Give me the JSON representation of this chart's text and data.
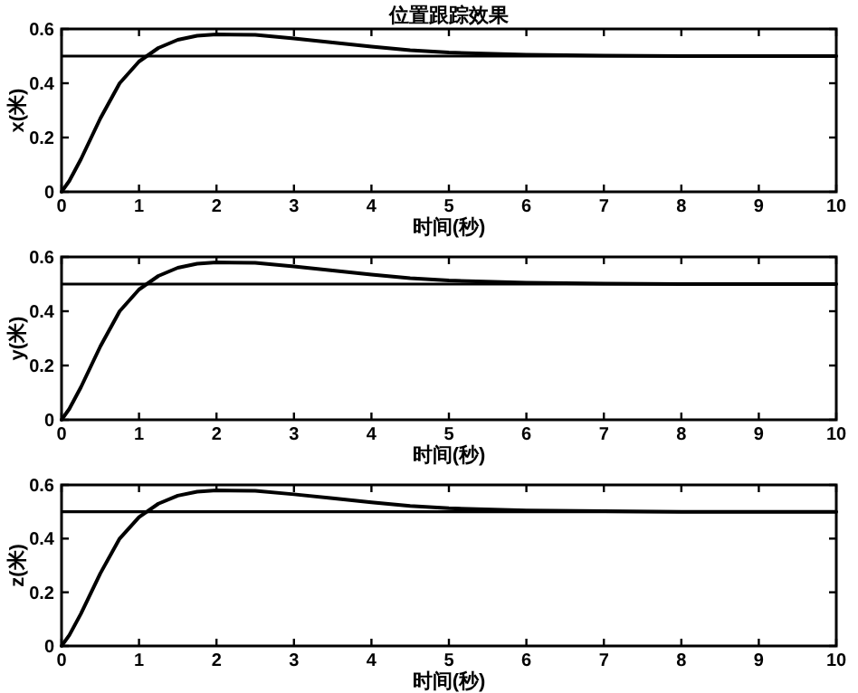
{
  "chart_data": [
    {
      "type": "line",
      "title": "位置跟踪效果",
      "xlabel": "时间(秒)",
      "ylabel": "x(米)",
      "xlim": [
        0,
        10
      ],
      "ylim": [
        0,
        0.6
      ],
      "xticks": [
        0,
        1,
        2,
        3,
        4,
        5,
        6,
        7,
        8,
        9,
        10
      ],
      "yticks": [
        0,
        0.2,
        0.4,
        0.6
      ],
      "x": [
        0,
        0.1,
        0.25,
        0.5,
        0.75,
        1,
        1.25,
        1.5,
        1.75,
        2,
        2.5,
        3,
        3.5,
        4,
        4.5,
        5,
        6,
        7,
        8,
        10
      ],
      "series": [
        {
          "color": "#000000",
          "values": [
            0,
            0.04,
            0.12,
            0.27,
            0.4,
            0.48,
            0.53,
            0.56,
            0.575,
            0.58,
            0.578,
            0.565,
            0.55,
            0.535,
            0.522,
            0.513,
            0.505,
            0.502,
            0.5,
            0.5
          ]
        }
      ],
      "ref_lines": [
        {
          "axis": "y",
          "value": 0.5,
          "label": null,
          "color": "#000000"
        }
      ]
    },
    {
      "type": "line",
      "xlabel": "时间(秒)",
      "ylabel": "y(米)",
      "xlim": [
        0,
        10
      ],
      "ylim": [
        0,
        0.6
      ],
      "xticks": [
        0,
        1,
        2,
        3,
        4,
        5,
        6,
        7,
        8,
        9,
        10
      ],
      "yticks": [
        0,
        0.2,
        0.4,
        0.6
      ],
      "x": [
        0,
        0.1,
        0.25,
        0.5,
        0.75,
        1,
        1.25,
        1.5,
        1.75,
        2,
        2.5,
        3,
        3.5,
        4,
        4.5,
        5,
        6,
        7,
        8,
        10
      ],
      "series": [
        {
          "color": "#000000",
          "values": [
            0,
            0.04,
            0.12,
            0.27,
            0.4,
            0.48,
            0.53,
            0.56,
            0.575,
            0.58,
            0.578,
            0.565,
            0.55,
            0.535,
            0.522,
            0.513,
            0.505,
            0.502,
            0.5,
            0.5
          ]
        }
      ],
      "ref_lines": [
        {
          "axis": "y",
          "value": 0.5,
          "label": null,
          "color": "#000000"
        }
      ]
    },
    {
      "type": "line",
      "xlabel": "时间(秒)",
      "ylabel": "z(米)",
      "xlim": [
        0,
        10
      ],
      "ylim": [
        0,
        0.6
      ],
      "xticks": [
        0,
        1,
        2,
        3,
        4,
        5,
        6,
        7,
        8,
        9,
        10
      ],
      "yticks": [
        0,
        0.2,
        0.4,
        0.6
      ],
      "x": [
        0,
        0.1,
        0.25,
        0.5,
        0.75,
        1,
        1.25,
        1.5,
        1.75,
        2,
        2.5,
        3,
        3.5,
        4,
        4.5,
        5,
        6,
        7,
        8,
        10
      ],
      "series": [
        {
          "color": "#000000",
          "values": [
            0,
            0.04,
            0.12,
            0.27,
            0.4,
            0.48,
            0.53,
            0.56,
            0.575,
            0.58,
            0.578,
            0.565,
            0.55,
            0.535,
            0.522,
            0.513,
            0.505,
            0.502,
            0.5,
            0.5
          ]
        }
      ],
      "ref_lines": [
        {
          "axis": "y",
          "value": 0.5,
          "label": null,
          "color": "#000000"
        }
      ]
    }
  ]
}
